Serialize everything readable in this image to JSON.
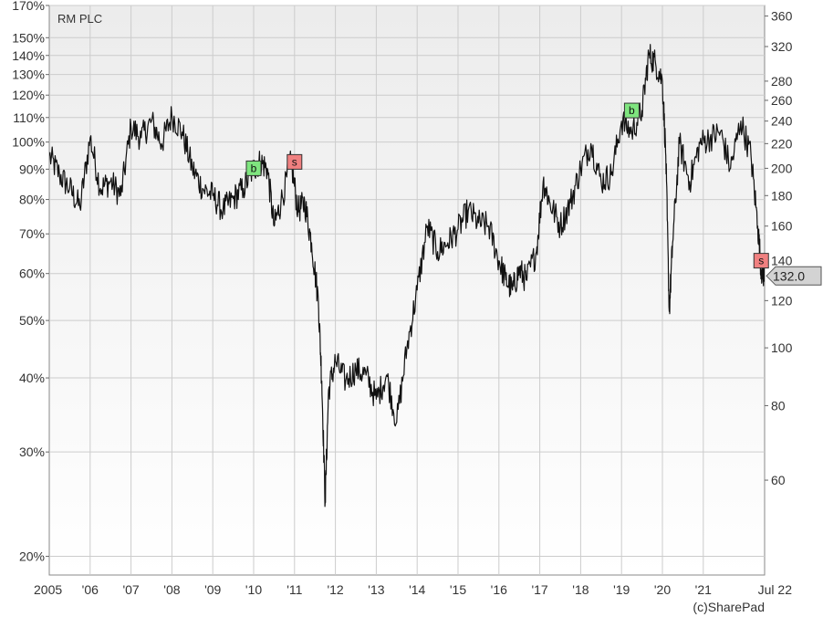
{
  "chart_data": {
    "type": "line",
    "title": "RM PLC",
    "credit": "(c)SharePad",
    "x_tick_labels": [
      "2005",
      "'06",
      "'07",
      "'08",
      "'09",
      "'10",
      "'11",
      "'12",
      "'13",
      "'14",
      "'15",
      "'16",
      "'17",
      "'18",
      "'19",
      "'20",
      "'21",
      "Jul 22"
    ],
    "left_axis": {
      "scale": "log",
      "unit": "percent",
      "tick_labels": [
        "170%",
        "150%",
        "140%",
        "130%",
        "120%",
        "110%",
        "100%",
        "90%",
        "80%",
        "70%",
        "60%",
        "50%",
        "40%",
        "30%",
        "20%"
      ],
      "tick_values": [
        170,
        150,
        140,
        130,
        120,
        110,
        100,
        90,
        80,
        70,
        60,
        50,
        40,
        30,
        20
      ]
    },
    "right_axis": {
      "scale": "log",
      "unit": "price (p)",
      "tick_labels": [
        "360",
        "320",
        "280",
        "260",
        "240",
        "220",
        "200",
        "180",
        "160",
        "140",
        "120",
        "100",
        "80",
        "60"
      ],
      "tick_values": [
        360,
        320,
        280,
        260,
        240,
        220,
        200,
        180,
        160,
        140,
        120,
        100,
        80,
        60
      ]
    },
    "ylim_price": [
      41.6,
      375
    ],
    "ylim_percent": [
      18.6,
      170
    ],
    "grid": true,
    "series": [
      {
        "name": "RM PLC",
        "x": [
          "2005-01",
          "2005-04",
          "2005-07",
          "2005-10",
          "2006-01",
          "2006-04",
          "2006-07",
          "2006-10",
          "2007-01",
          "2007-04",
          "2007-07",
          "2007-10",
          "2008-01",
          "2008-04",
          "2008-07",
          "2008-10",
          "2009-01",
          "2009-04",
          "2009-07",
          "2009-10",
          "2010-01",
          "2010-03",
          "2010-05",
          "2010-07",
          "2010-09",
          "2010-12",
          "2011-02",
          "2011-04",
          "2011-06",
          "2011-08",
          "2011-09",
          "2011-10",
          "2011-11",
          "2012-01",
          "2012-04",
          "2012-07",
          "2012-10",
          "2013-01",
          "2013-04",
          "2013-07",
          "2013-10",
          "2014-01",
          "2014-04",
          "2014-07",
          "2014-10",
          "2015-01",
          "2015-04",
          "2015-07",
          "2015-10",
          "2016-01",
          "2016-03",
          "2016-05",
          "2016-07",
          "2016-09",
          "2016-12",
          "2017-02",
          "2017-04",
          "2017-07",
          "2017-10",
          "2018-01",
          "2018-04",
          "2018-07",
          "2018-10",
          "2019-01",
          "2019-04",
          "2019-07",
          "2019-09",
          "2019-11",
          "2020-01",
          "2020-02",
          "2020-03",
          "2020-04",
          "2020-06",
          "2020-09",
          "2020-12",
          "2021-03",
          "2021-06",
          "2021-09",
          "2021-12",
          "2022-03",
          "2022-05",
          "2022-06",
          "2022-07"
        ],
        "y": [
          210,
          195,
          185,
          172,
          225,
          185,
          190,
          180,
          235,
          225,
          240,
          220,
          245,
          230,
          200,
          185,
          180,
          170,
          178,
          185,
          200,
          205,
          200,
          160,
          175,
          205,
          170,
          175,
          150,
          120,
          88,
          55,
          85,
          95,
          88,
          92,
          90,
          82,
          90,
          75,
          100,
          125,
          160,
          145,
          150,
          158,
          170,
          162,
          160,
          140,
          130,
          125,
          135,
          130,
          145,
          190,
          175,
          160,
          175,
          200,
          220,
          190,
          195,
          240,
          230,
          250,
          310,
          300,
          280,
          210,
          115,
          150,
          220,
          190,
          220,
          225,
          230,
          200,
          240,
          210,
          160,
          135,
          132
        ]
      }
    ],
    "trade_markers": [
      {
        "label": "b",
        "date": "2010-01",
        "price": 200,
        "color": "#7FE57F"
      },
      {
        "label": "s",
        "date": "2011-01",
        "price": 205,
        "color": "#F08080"
      },
      {
        "label": "b",
        "date": "2019-04",
        "price": 250,
        "color": "#7FE57F"
      },
      {
        "label": "s",
        "date": "2022-06",
        "price": 140,
        "color": "#F08080"
      }
    ],
    "last_value": "132.0",
    "colors": {
      "line": "#111111",
      "grid": "#cccccc",
      "plot_bg_top": "#ececec",
      "plot_bg_bottom": "#ffffff",
      "last_value_bg": "#d3d3d3"
    }
  }
}
